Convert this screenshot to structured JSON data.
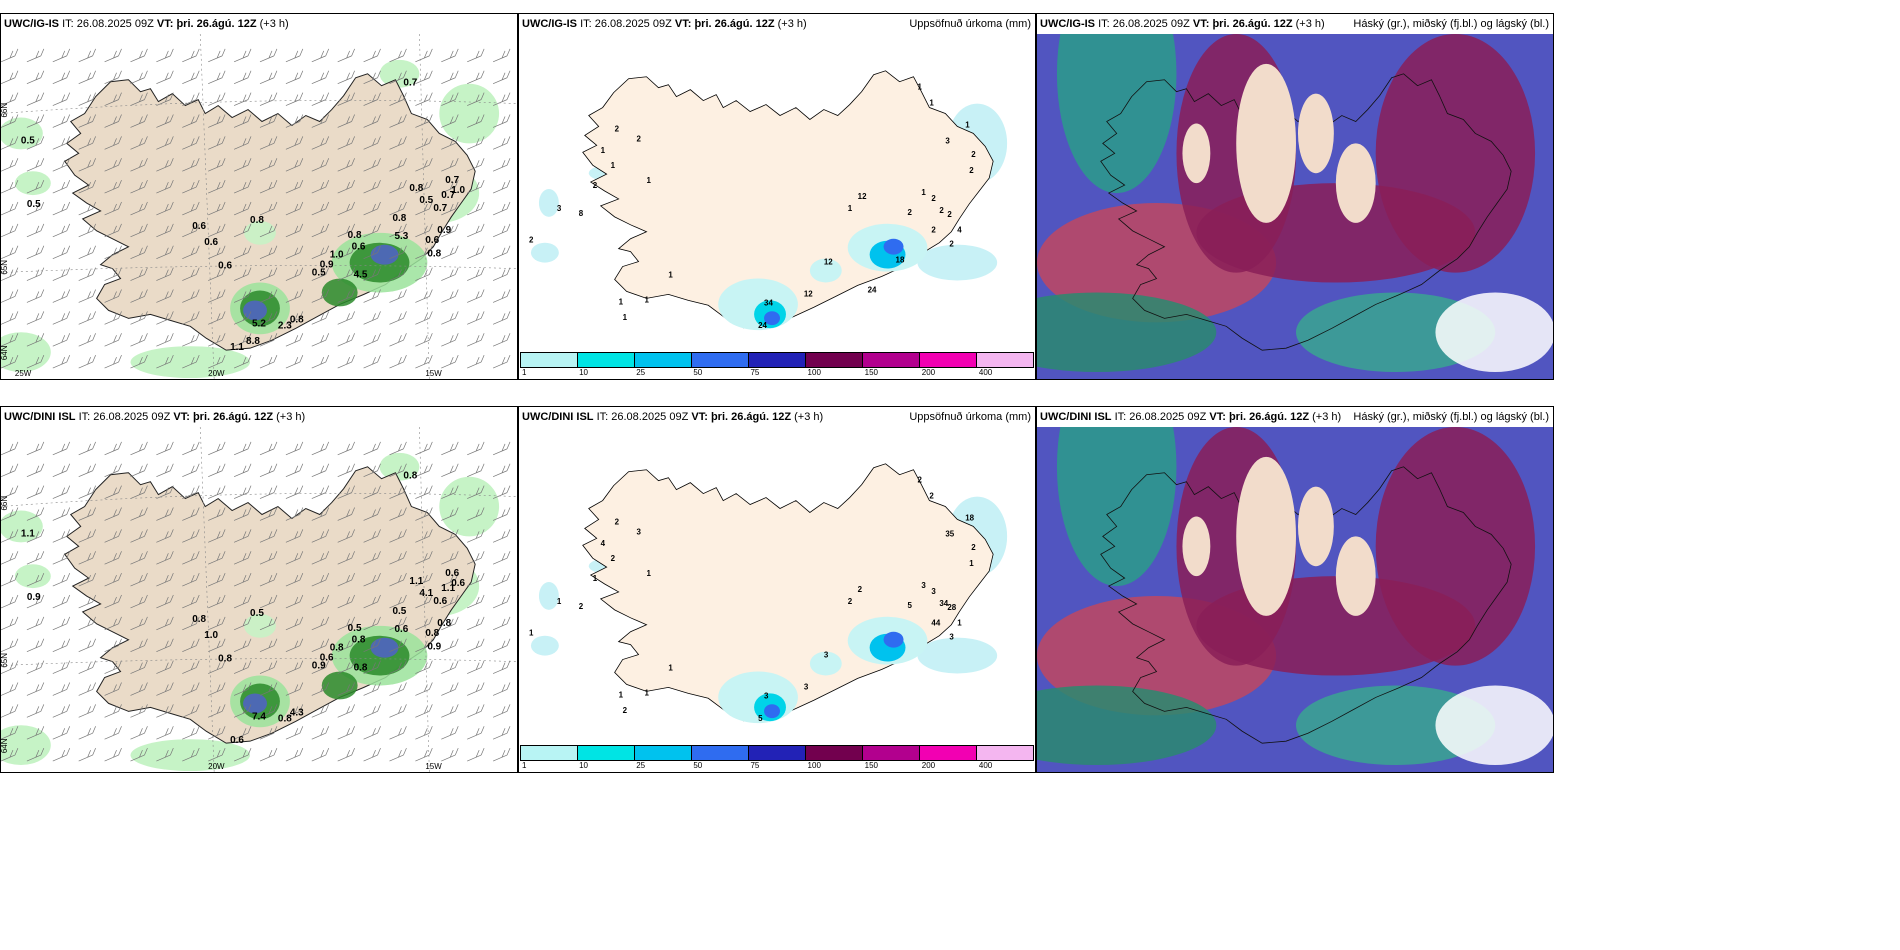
{
  "legend_colors": [
    "#b8f4f4",
    "#00e4e4",
    "#00c2ee",
    "#2f6cf0",
    "#2222b6",
    "#72004e",
    "#b2008e",
    "#f200b2",
    "#f4b6f0"
  ],
  "legend_labels": [
    "1",
    "10",
    "25",
    "50",
    "75",
    "100",
    "150",
    "200",
    "400"
  ],
  "rows": [
    {
      "model": "UWC/IG-IS",
      "it_label": "IT:",
      "it": "26.08.2025 09Z",
      "vt_label": "VT:",
      "vt": "þri. 26.ágú. 12Z",
      "lead": "(+3 h)",
      "precip_title": "Uppsöfnuð úrkoma (mm)",
      "cloud_title": "Háský (gr.), miðský (fj.bl.) og lágský (bl.)",
      "grid_lat": [
        "66N",
        "65N",
        "64N"
      ],
      "grid_lon": [
        "20W",
        "15W",
        "25W"
      ],
      "wind_values": [
        "0.7",
        "0.5",
        "0.5",
        "0.6",
        "0.6",
        "0.8",
        "0.6",
        "0.8",
        "0.5",
        "0.9",
        "1.0",
        "0.6",
        "4.5",
        "5.3",
        "0.8",
        "0.8",
        "0.5",
        "0.7",
        "0.7",
        "0.6",
        "0.9",
        "0.7",
        "1.0",
        "0.8",
        "5.2",
        "2.3",
        "0.8",
        "1.1",
        "8.8"
      ],
      "precip_values": [
        "2",
        "2",
        "1",
        "1",
        "2",
        "1",
        "3",
        "8",
        "2",
        "1",
        "1",
        "1",
        "1",
        "1",
        "12",
        "12",
        "12",
        "34",
        "24",
        "2",
        "1",
        "2",
        "2",
        "2",
        "2",
        "1",
        "3",
        "2",
        "2",
        "4",
        "2",
        "1",
        "1",
        "18",
        "24"
      ]
    },
    {
      "model": "UWC/DINI ISL",
      "it_label": "IT:",
      "it": "26.08.2025 09Z",
      "vt_label": "VT:",
      "vt": "þri. 26.ágú. 12Z",
      "lead": "(+3 h)",
      "precip_title": "Uppsöfnuð úrkoma (mm)",
      "cloud_title": "Háský (gr.), miðský (fj.bl.) og lágský (bl.)",
      "grid_lat": [
        "66N",
        "65N",
        "64N"
      ],
      "grid_lon": [
        "20W",
        "15W"
      ],
      "wind_values": [
        "0.8",
        "1.1",
        "0.9",
        "0.8",
        "1.0",
        "0.5",
        "0.8",
        "0.5",
        "0.9",
        "0.6",
        "0.8",
        "0.8",
        "0.8",
        "0.6",
        "0.5",
        "1.1",
        "4.1",
        "0.6",
        "0.6",
        "0.8",
        "0.8",
        "1.1",
        "0.6",
        "0.9",
        "7.4",
        "0.8",
        "4.3",
        "0.6"
      ],
      "precip_values": [
        "2",
        "3",
        "4",
        "2",
        "1",
        "1",
        "1",
        "2",
        "1",
        "1",
        "1",
        "1",
        "2",
        "2",
        "2",
        "3",
        "3",
        "3",
        "5",
        "5",
        "3",
        "3",
        "34",
        "44",
        "28",
        "18",
        "35",
        "2",
        "1",
        "1",
        "3",
        "2",
        "2"
      ]
    }
  ]
}
